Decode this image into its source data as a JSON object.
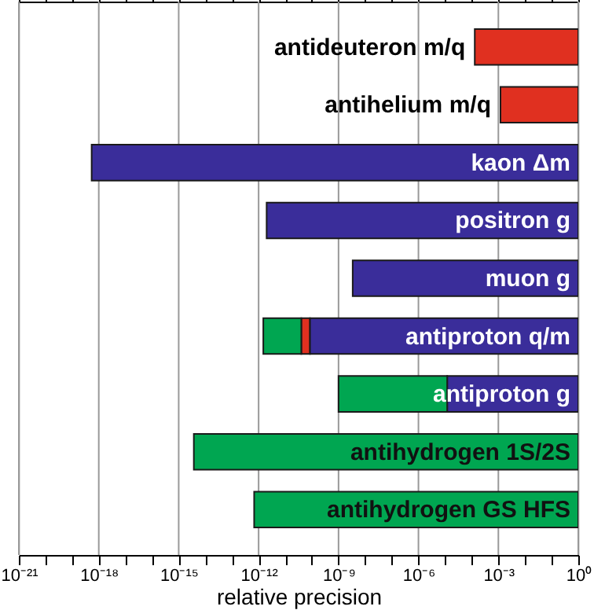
{
  "chart_data": {
    "type": "bar",
    "orientation": "horizontal",
    "xlabel": "relative precision",
    "log": "x",
    "grid": "x",
    "categories": [
      "antideuteron m/q",
      "antihelium m/q",
      "kaon Δm",
      "positron g",
      "muon g",
      "antiproton q/m",
      "antiproton g",
      "antihydrogen 1S/2S",
      "antihydrogen GS HFS"
    ],
    "series": [
      {
        "color": "#e03020",
        "base": [
          0.00013,
          0.0012,
          null,
          null,
          null,
          4e-11,
          null,
          null,
          null
        ],
        "values": [
          0.99987,
          0.9988,
          null,
          null,
          null,
          4.5e-11,
          null,
          null,
          null
        ]
      },
      {
        "color": "#3a2d9a",
        "base": [
          null,
          null,
          5.4e-19,
          2e-12,
          3.4e-09,
          8.5e-11,
          1.2e-05,
          null,
          null
        ],
        "values": [
          null,
          null,
          1,
          0.999999999998,
          0.9999999966,
          0.999999999915,
          0.999988,
          null,
          null
        ]
      },
      {
        "color": "#00a651",
        "base": [
          null,
          null,
          null,
          null,
          null,
          1.5e-12,
          1e-09,
          3.7e-15,
          6.8e-13
        ],
        "values": [
          null,
          null,
          null,
          null,
          null,
          3.85e-11,
          1.2e-05,
          0.9999999999999963,
          0.99999999999932
        ]
      }
    ],
    "xlim": [
      1e-21,
      1
    ],
    "xticks": [
      {
        "value": 1e-21,
        "label": "10⁻²¹"
      },
      {
        "value": 1e-20,
        "label": null
      },
      {
        "value": 1e-19,
        "label": null
      },
      {
        "value": 1e-18,
        "label": "10⁻¹⁸"
      },
      {
        "value": 1e-17,
        "label": null
      },
      {
        "value": 1e-16,
        "label": null
      },
      {
        "value": 1e-15,
        "label": "10⁻¹⁵"
      },
      {
        "value": 1e-14,
        "label": null
      },
      {
        "value": 1e-13,
        "label": null
      },
      {
        "value": 1e-12,
        "label": "10⁻¹²"
      },
      {
        "value": 1e-11,
        "label": null
      },
      {
        "value": 1e-10,
        "label": null
      },
      {
        "value": 1e-09,
        "label": "10⁻⁹"
      },
      {
        "value": 1e-08,
        "label": null
      },
      {
        "value": 1e-07,
        "label": null
      },
      {
        "value": 1e-06,
        "label": "10⁻⁶"
      },
      {
        "value": 1e-05,
        "label": null
      },
      {
        "value": 0.0001,
        "label": null
      },
      {
        "value": 0.001,
        "label": "10⁻³"
      },
      {
        "value": 0.01,
        "label": null
      },
      {
        "value": 0.1,
        "label": null
      },
      {
        "value": 1,
        "label": "10⁰"
      }
    ]
  }
}
